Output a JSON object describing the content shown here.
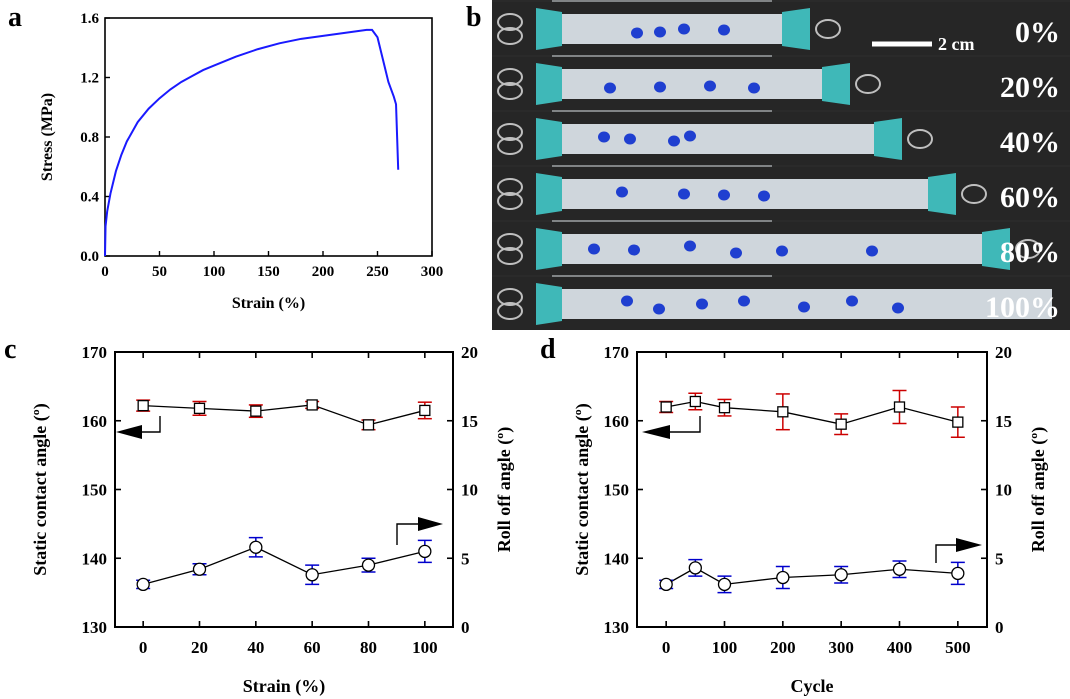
{
  "panels": {
    "a": {
      "letter": "a",
      "chart_data": {
        "type": "line",
        "xlabel": "Strain (%)",
        "ylabel": "Stress (MPa)",
        "xlim": [
          0,
          300
        ],
        "ylim": [
          0,
          1.6
        ],
        "xticks": [
          0,
          50,
          100,
          150,
          200,
          250,
          300
        ],
        "yticks": [
          0.0,
          0.4,
          0.8,
          1.2,
          1.6
        ],
        "ytick_labels": [
          "0.0",
          "0.4",
          "0.8",
          "1.2",
          "1.6"
        ],
        "series": [
          {
            "color": "#1a1aff",
            "x": [
              0,
              0.5,
              2,
              5,
              10,
              15,
              20,
              30,
              40,
              50,
              60,
              70,
              80,
              90,
              100,
              120,
              140,
              160,
              180,
              200,
              220,
              230,
              240,
              245,
              250,
              255,
              260,
              265,
              267,
              268,
              269
            ],
            "y": [
              0.0,
              0.2,
              0.3,
              0.42,
              0.57,
              0.68,
              0.77,
              0.9,
              0.99,
              1.06,
              1.12,
              1.17,
              1.21,
              1.25,
              1.28,
              1.34,
              1.39,
              1.43,
              1.46,
              1.48,
              1.5,
              1.51,
              1.52,
              1.52,
              1.47,
              1.32,
              1.17,
              1.07,
              1.02,
              0.8,
              0.58
            ]
          }
        ]
      }
    },
    "b": {
      "letter": "b",
      "scale_bar_label": "2 cm",
      "strip_labels": [
        "0%",
        "20%",
        "40%",
        "60%",
        "80%",
        "100%"
      ],
      "drop_counts": [
        4,
        4,
        4,
        4,
        6,
        7
      ],
      "colors": {
        "strip": "#cfd6dc",
        "clip": "#3fb8b8",
        "drop": "#1f3fd0",
        "background": "#2a2a2a"
      }
    },
    "c": {
      "letter": "c",
      "chart_data": {
        "type": "scatter",
        "xlabel": "Strain (%)",
        "ylabel_left": "Static contact angle (º)",
        "ylabel_right": "Roll off angle (º)",
        "xlim": [
          -10,
          110
        ],
        "ylim_left": [
          130,
          170
        ],
        "ylim_right": [
          0,
          20
        ],
        "xticks": [
          0,
          20,
          40,
          60,
          80,
          100
        ],
        "yticks_left": [
          130,
          140,
          150,
          160,
          170
        ],
        "yticks_right": [
          0,
          5,
          10,
          15,
          20
        ],
        "series": [
          {
            "axis": "left",
            "marker": "square",
            "error_color": "#cc0000",
            "x": [
              0,
              20,
              40,
              60,
              80,
              100
            ],
            "y": [
              162.2,
              161.8,
              161.4,
              162.3,
              159.4,
              161.5
            ],
            "err": [
              0.8,
              1.0,
              0.9,
              0.5,
              0.7,
              1.2
            ]
          },
          {
            "axis": "right",
            "marker": "circle",
            "error_color": "#0000cc",
            "x": [
              0,
              20,
              40,
              60,
              80,
              100
            ],
            "y": [
              3.1,
              4.2,
              5.8,
              3.8,
              4.5,
              5.5
            ],
            "err": [
              0.3,
              0.4,
              0.7,
              0.7,
              0.5,
              0.8
            ]
          }
        ]
      }
    },
    "d": {
      "letter": "d",
      "chart_data": {
        "type": "scatter",
        "xlabel": "Cycle",
        "ylabel_left": "Static contact angle (º)",
        "ylabel_right": "Roll off angle (º)",
        "xlim": [
          -50,
          550
        ],
        "ylim_left": [
          130,
          170
        ],
        "ylim_right": [
          0,
          20
        ],
        "xticks": [
          0,
          100,
          200,
          300,
          400,
          500
        ],
        "yticks_left": [
          130,
          140,
          150,
          160,
          170
        ],
        "yticks_right": [
          0,
          5,
          10,
          15,
          20
        ],
        "series": [
          {
            "axis": "left",
            "marker": "square",
            "error_color": "#cc0000",
            "x": [
              0,
              50,
              100,
              200,
              300,
              400,
              500
            ],
            "y": [
              162.0,
              162.8,
              161.9,
              161.3,
              159.5,
              162.0,
              159.8
            ],
            "err": [
              0.8,
              1.2,
              1.2,
              2.6,
              1.5,
              2.4,
              2.2
            ]
          },
          {
            "axis": "right",
            "marker": "circle",
            "error_color": "#0000cc",
            "x": [
              0,
              50,
              100,
              200,
              300,
              400,
              500
            ],
            "y": [
              3.1,
              4.3,
              3.1,
              3.6,
              3.8,
              4.2,
              3.9
            ],
            "err": [
              0.3,
              0.6,
              0.6,
              0.8,
              0.6,
              0.6,
              0.8
            ]
          }
        ]
      }
    }
  }
}
